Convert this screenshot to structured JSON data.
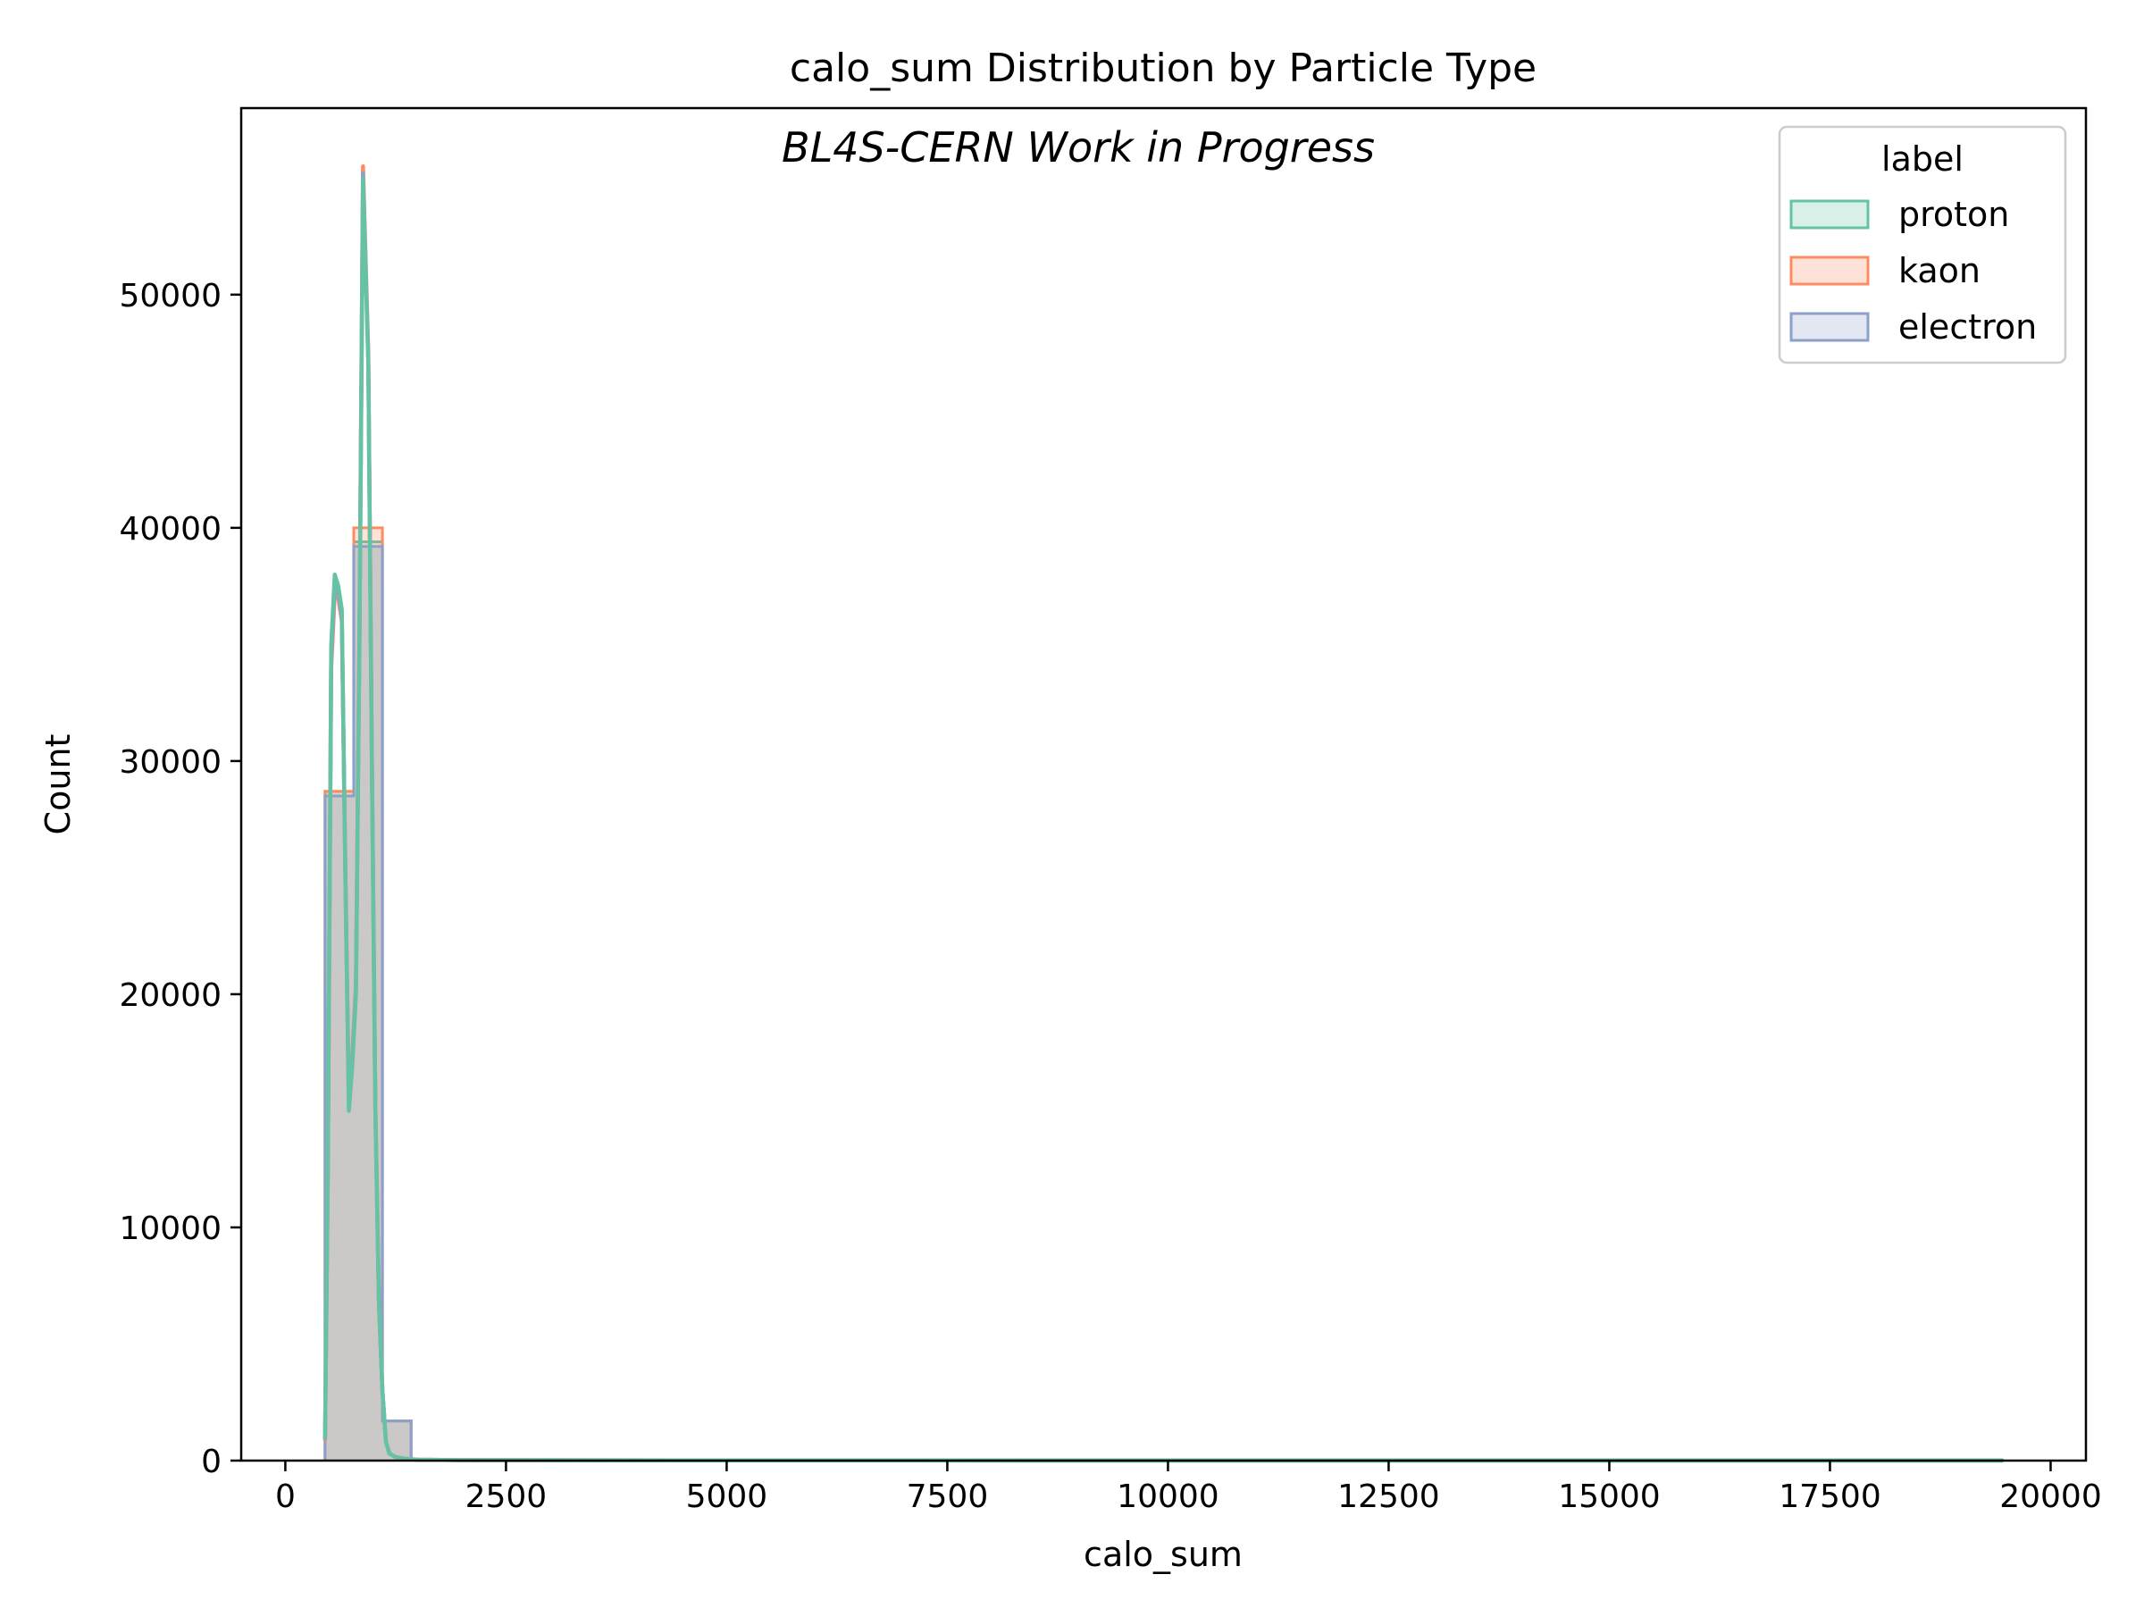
{
  "chart_data": {
    "type": "histogram",
    "title": "calo_sum Distribution by Particle Type",
    "annotation": "BL4S-CERN Work in Progress",
    "xlabel": "calo_sum",
    "ylabel": "Count",
    "xlim": [
      -500,
      20400
    ],
    "ylim": [
      0,
      58000
    ],
    "xticks": [
      0,
      2500,
      5000,
      7500,
      10000,
      12500,
      15000,
      17500,
      20000
    ],
    "yticks": [
      0,
      10000,
      20000,
      30000,
      40000,
      50000
    ],
    "grid": false,
    "legend": {
      "title": "label",
      "placement": "top-right"
    },
    "bin_edges": [
      450,
      775,
      1100,
      1425,
      1750,
      19450
    ],
    "series": [
      {
        "name": "proton",
        "color": "#66c2a5",
        "counts": [
          28700,
          39400,
          1700,
          30,
          20
        ],
        "kde_x": [
          450,
          480,
          520,
          560,
          600,
          640,
          680,
          720,
          760,
          800,
          840,
          880,
          910,
          940,
          980,
          1020,
          1060,
          1100,
          1140,
          1180,
          1250,
          1350,
          1500,
          2000,
          5000,
          10000,
          19450
        ],
        "kde_y": [
          1000,
          12000,
          35000,
          38000,
          37500,
          36500,
          25000,
          15000,
          17000,
          20000,
          35000,
          55000,
          51000,
          47000,
          30000,
          15000,
          6800,
          3000,
          800,
          300,
          150,
          80,
          40,
          20,
          10,
          5,
          5
        ]
      },
      {
        "name": "kaon",
        "color": "#fc8d62",
        "counts": [
          28700,
          40000,
          1700,
          30,
          20
        ],
        "kde_x": [
          450,
          480,
          520,
          560,
          600,
          640,
          680,
          720,
          760,
          800,
          840,
          880,
          910,
          940,
          980,
          1020,
          1060,
          1100,
          1140,
          1180,
          1250,
          1350,
          1500,
          2000,
          5000,
          10000,
          19450
        ],
        "kde_y": [
          900,
          11500,
          34000,
          37200,
          37000,
          36000,
          25500,
          15500,
          17500,
          20500,
          36000,
          55500,
          51500,
          47500,
          30500,
          15200,
          6900,
          3000,
          800,
          300,
          150,
          80,
          40,
          20,
          10,
          5,
          5
        ]
      },
      {
        "name": "electron",
        "color": "#8da0cb",
        "counts": [
          28500,
          39200,
          1700,
          30,
          20
        ],
        "kde_x": [
          450,
          480,
          520,
          560,
          600,
          640,
          680,
          720,
          760,
          800,
          840,
          880,
          910,
          940,
          980,
          1020,
          1060,
          1100,
          1140,
          1180,
          1250,
          1350,
          1500,
          2000,
          5000,
          10000,
          19450
        ],
        "kde_y": [
          950,
          11800,
          34500,
          37500,
          37200,
          36200,
          25200,
          15200,
          17200,
          20200,
          35500,
          55200,
          51200,
          47200,
          30200,
          15100,
          6850,
          3000,
          800,
          300,
          150,
          80,
          40,
          20,
          10,
          5,
          5
        ]
      }
    ]
  }
}
